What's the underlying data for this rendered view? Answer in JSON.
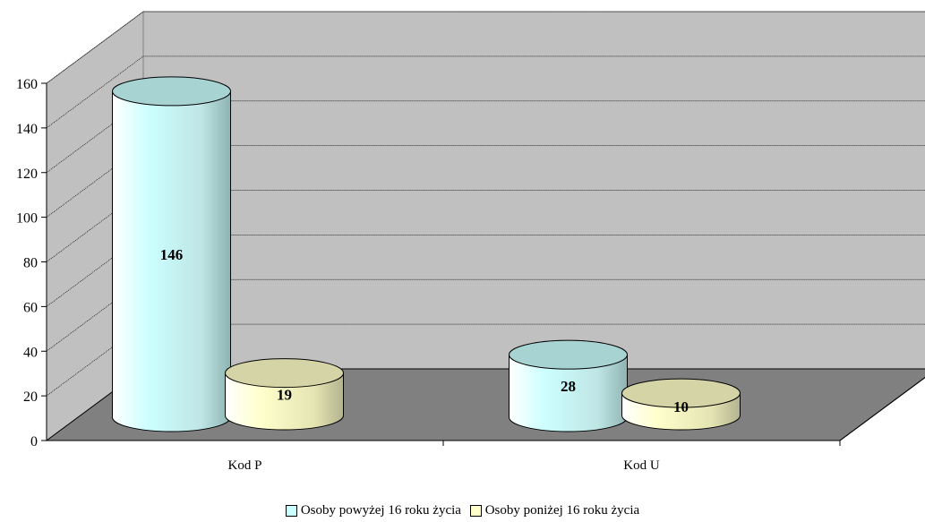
{
  "chart_data": {
    "type": "bar",
    "style": "3d-cylinder",
    "categories": [
      "Kod P",
      "Kod U"
    ],
    "series": [
      {
        "name": "Osoby powyżej 16 roku życia",
        "values": [
          146,
          28
        ],
        "color": "#ccffff"
      },
      {
        "name": "Osoby poniżej 16 roku życia",
        "values": [
          19,
          10
        ],
        "color": "#ffffcc"
      }
    ],
    "data_labels": [
      [
        "146",
        "28"
      ],
      [
        "19",
        "10"
      ]
    ],
    "ylim": [
      0,
      160
    ],
    "yticks": [
      0,
      20,
      40,
      60,
      80,
      100,
      120,
      140,
      160
    ],
    "ytick_labels": [
      "0",
      "20",
      "40",
      "60",
      "80",
      "100",
      "120",
      "140",
      "160"
    ],
    "grid": true,
    "legend_position": "bottom",
    "wall_color": "#c0c0c0",
    "floor_color": "#808080"
  }
}
